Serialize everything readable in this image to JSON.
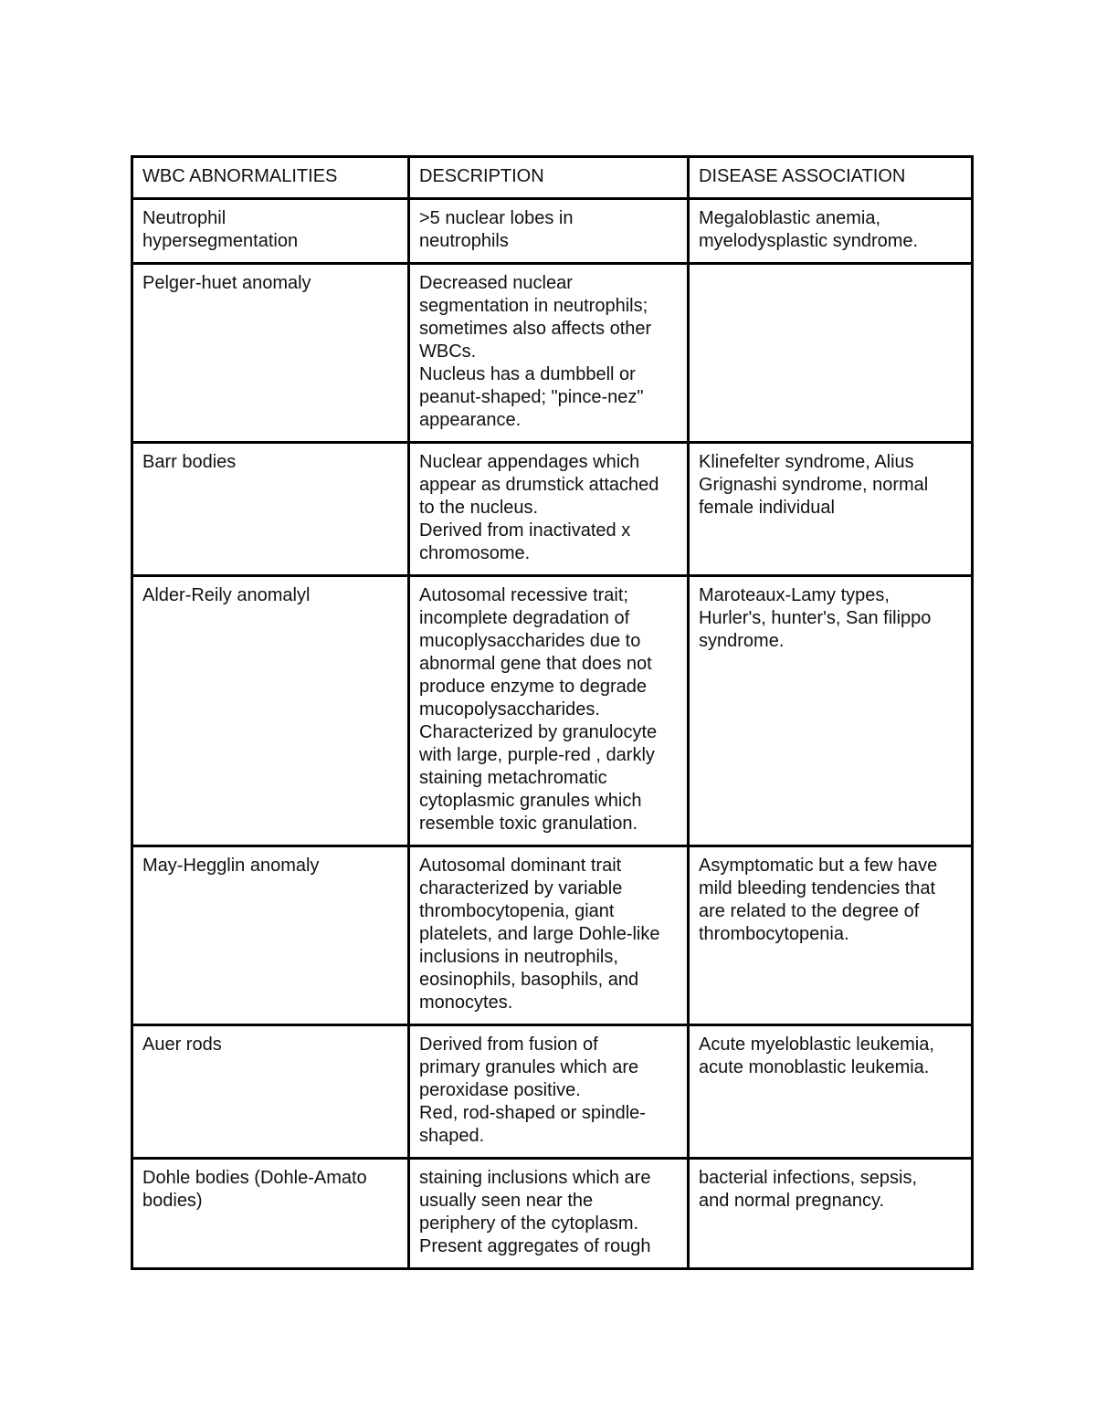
{
  "page": {
    "background_color": "#ffffff"
  },
  "table": {
    "border_color": "#000000",
    "text_color": "#111111",
    "headers": [
      "WBC ABNORMALITIES",
      "DESCRIPTION",
      "DISEASE ASSOCIATION"
    ],
    "rows": [
      {
        "abnormality": "Neutrophil\nhypersegmentation",
        "description": ">5 nuclear lobes in\nneutrophils",
        "disease_association": "Megaloblastic anemia,\nmyelodysplastic syndrome."
      },
      {
        "abnormality": "Pelger-huet anomaly",
        "description": "Decreased nuclear\nsegmentation in neutrophils;\nsometimes also affects other\nWBCs.\nNucleus has a dumbbell or\npeanut-shaped; \"pince-nez\"\nappearance.",
        "disease_association": ""
      },
      {
        "abnormality": "Barr bodies",
        "description": "Nuclear appendages which\nappear as drumstick attached\nto the nucleus.\nDerived from inactivated x\nchromosome.",
        "disease_association": "Klinefelter syndrome, Alius\nGrignashi syndrome, normal\nfemale individual"
      },
      {
        "abnormality": "Alder-Reily anomalyl",
        "description": "Autosomal recessive trait;\nincomplete degradation of\nmucoplysaccharides due to\nabnormal gene that does not\nproduce enzyme to degrade\nmucopolysaccharides.\nCharacterized by granulocyte\nwith large, purple-red , darkly\nstaining metachromatic\ncytoplasmic granules which\nresemble toxic granulation.",
        "disease_association": "Maroteaux-Lamy types,\nHurler's, hunter's, San filippo\nsyndrome."
      },
      {
        "abnormality": "May-Hegglin anomaly",
        "description": "Autosomal dominant trait\ncharacterized by variable\nthrombocytopenia, giant\nplatelets, and large Dohle-like\ninclusions in neutrophils,\neosinophils, basophils, and\nmonocytes.",
        "disease_association": "Asymptomatic but a few have\nmild bleeding tendencies that\nare related to the degree of\nthrombocytopenia."
      },
      {
        "abnormality": "Auer rods",
        "description": "Derived from fusion of\nprimary granules which are\nperoxidase positive.\nRed, rod-shaped or spindle-\nshaped.",
        "disease_association": "Acute myeloblastic leukemia,\nacute monoblastic leukemia."
      },
      {
        "abnormality": "Dohle bodies (Dohle-Amato\nbodies)",
        "description": "staining inclusions which are\nusually seen near the\nperiphery of the cytoplasm.\nPresent aggregates of rough",
        "disease_association": "bacterial infections, sepsis,\nand normal pregnancy."
      }
    ]
  }
}
